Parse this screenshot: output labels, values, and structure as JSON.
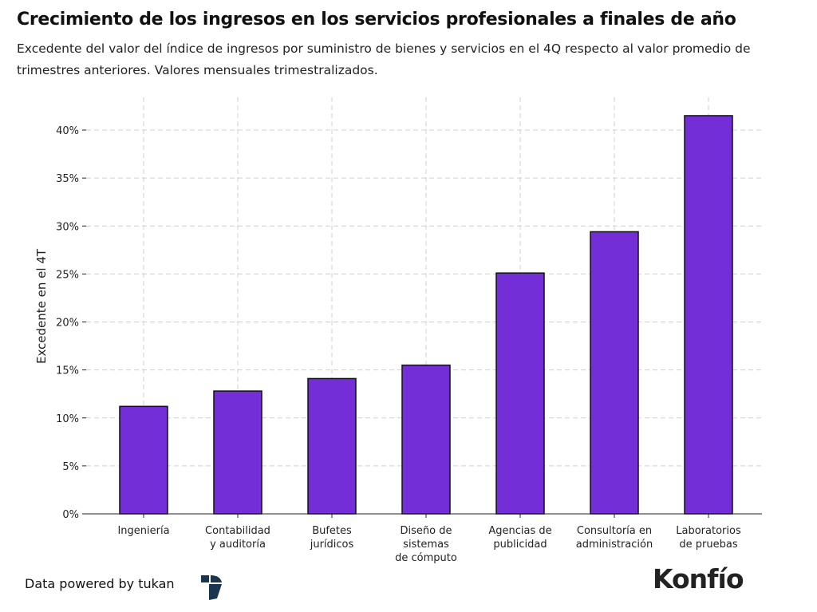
{
  "chart_data": {
    "type": "bar",
    "title": "Crecimiento de los ingresos en los servicios profesionales a finales de año",
    "subtitle": "Excedente del valor del índice de ingresos por suministro de bienes y servicios en el 4Q respecto al valor promedio de trimestres anteriores. Valores mensuales trimestralizados.",
    "ylabel": "Excedente en el 4T",
    "xlabel": "",
    "categories": [
      [
        "Ingeniería"
      ],
      [
        "Contabilidad",
        "y auditoría"
      ],
      [
        "Bufetes",
        "jurídicos"
      ],
      [
        "Diseño de",
        "sistemas",
        "de cómputo"
      ],
      [
        "Agencias de",
        "publicidad"
      ],
      [
        "Consultoría en",
        "administración"
      ],
      [
        "Laboratorios",
        "de pruebas"
      ]
    ],
    "values": [
      11.2,
      12.8,
      14.1,
      15.5,
      25.1,
      29.4,
      41.5
    ],
    "ylim": [
      0,
      42
    ],
    "yticks": [
      0,
      5,
      10,
      15,
      20,
      25,
      30,
      35,
      40
    ],
    "ytick_labels": [
      "0%",
      "5%",
      "10%",
      "15%",
      "20%",
      "25%",
      "30%",
      "35%",
      "40%"
    ],
    "grid": true,
    "bar_color": "#742ed8",
    "edge_color": "#111111"
  },
  "footer": {
    "credit": "Data powered by tukan",
    "brand": "Konfío"
  }
}
